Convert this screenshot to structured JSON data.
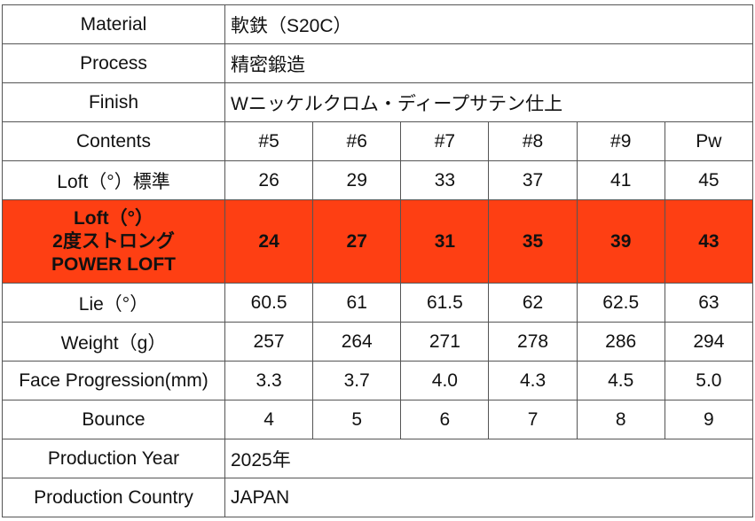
{
  "table": {
    "highlight_color": "#fe3f13",
    "rows": [
      {
        "label": "Material",
        "value": "軟鉄（S20C）"
      },
      {
        "label": "Process",
        "value": "精密鍛造"
      },
      {
        "label": "Finish",
        "value": "Wニッケルクロム・ディープサテン仕上"
      },
      {
        "label": "Contents",
        "values": [
          "#5",
          "#6",
          "#7",
          "#8",
          "#9",
          "Pw"
        ]
      },
      {
        "label": "Loft（°）標準",
        "values": [
          "26",
          "29",
          "33",
          "37",
          "41",
          "45"
        ]
      },
      {
        "label_lines": [
          "Loft（°）",
          "2度ストロング",
          "POWER LOFT"
        ],
        "values": [
          "24",
          "27",
          "31",
          "35",
          "39",
          "43"
        ],
        "highlight": true
      },
      {
        "label": "Lie（°）",
        "values": [
          "60.5",
          "61",
          "61.5",
          "62",
          "62.5",
          "63"
        ]
      },
      {
        "label": "Weight（g）",
        "values": [
          "257",
          "264",
          "271",
          "278",
          "286",
          "294"
        ]
      },
      {
        "label": "Face Progression(mm)",
        "values": [
          "3.3",
          "3.7",
          "4.0",
          "4.3",
          "4.5",
          "5.0"
        ]
      },
      {
        "label": "Bounce",
        "values": [
          "4",
          "5",
          "6",
          "7",
          "8",
          "9"
        ]
      },
      {
        "label": "Production Year",
        "value": "2025年"
      },
      {
        "label": "Production Country",
        "value": "JAPAN"
      }
    ]
  }
}
